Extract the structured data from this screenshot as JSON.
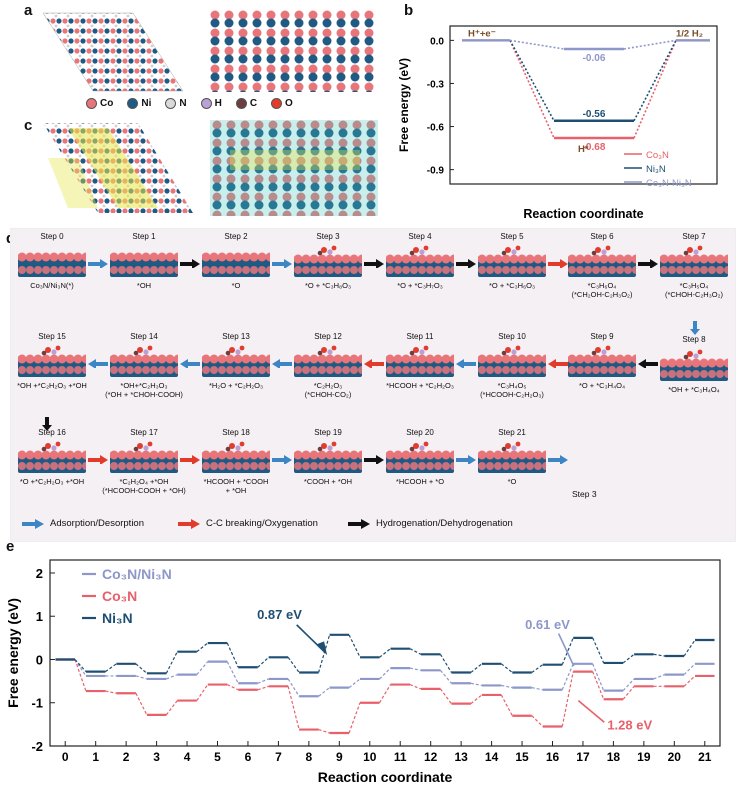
{
  "panels": {
    "a": "a",
    "b": "b",
    "c": "c",
    "d": "d",
    "e": "e"
  },
  "atom_legend": [
    {
      "label": "Co",
      "color": "#e8757a"
    },
    {
      "label": "Ni",
      "color": "#1f5a85"
    },
    {
      "label": "N",
      "color": "#d9d9d9"
    },
    {
      "label": "H",
      "color": "#b9a0d6"
    },
    {
      "label": "C",
      "color": "#6b3f3f"
    },
    {
      "label": "O",
      "color": "#e23c2c"
    }
  ],
  "colors": {
    "co3n": "#e8606a",
    "ni3n": "#1e4f73",
    "mix": "#8e97c9",
    "blue_arrow": "#3d86c6",
    "red_arrow": "#e23b2c",
    "black_arrow": "#111111"
  },
  "chart_data": [
    {
      "panel": "b",
      "type": "line",
      "ylabel": "Free energy (eV)",
      "xlabel": "Reaction coordinate",
      "ylim": [
        -1.0,
        0.1
      ],
      "yticks": [
        "0.0",
        "-0.3",
        "-0.6",
        "-0.9"
      ],
      "ytick_values": [
        0.0,
        -0.3,
        -0.6,
        -0.9
      ],
      "state_labels": {
        "initial": "H⁺+e⁻",
        "middle": "H*",
        "final": "1/2 H₂"
      },
      "series": [
        {
          "name": "Co₃N",
          "values": [
            0.0,
            -0.68,
            0.0
          ],
          "label": "-0.68"
        },
        {
          "name": "Ni₃N",
          "values": [
            0.0,
            -0.56,
            0.0
          ],
          "label": "-0.56"
        },
        {
          "name": "Co₃N-Ni₃N",
          "values": [
            0.0,
            -0.06,
            0.0
          ],
          "label": "-0.06"
        }
      ],
      "legend": [
        "Co₃N",
        "Ni₃N",
        "Co₃N-Ni₃N"
      ]
    },
    {
      "panel": "e",
      "type": "line",
      "ylabel": "Free energy (eV)",
      "xlabel": "Reaction coordinate",
      "ylim": [
        -2,
        2.3
      ],
      "yticks": [
        2,
        1,
        0,
        -1,
        -2
      ],
      "x": [
        0,
        1,
        2,
        3,
        4,
        5,
        6,
        7,
        8,
        9,
        10,
        11,
        12,
        13,
        14,
        15,
        16,
        17,
        18,
        19,
        20,
        21
      ],
      "series": [
        {
          "name": "Co₃N/Ni₃N",
          "values": [
            0,
            -0.38,
            -0.38,
            -0.45,
            -0.35,
            -0.05,
            -0.55,
            -0.45,
            -0.85,
            -0.65,
            -0.45,
            -0.2,
            -0.25,
            -0.55,
            -0.6,
            -0.65,
            -0.7,
            -0.1,
            -0.72,
            -0.45,
            -0.35,
            -0.1
          ]
        },
        {
          "name": "Co₃N",
          "values": [
            0,
            -0.73,
            -0.78,
            -1.28,
            -0.95,
            -0.58,
            -0.7,
            -0.62,
            -1.62,
            -1.7,
            -1.0,
            -0.58,
            -0.68,
            -1.02,
            -0.82,
            -1.3,
            -1.55,
            -0.28,
            -0.92,
            -0.62,
            -0.62,
            -0.38
          ]
        },
        {
          "name": "Ni₃N",
          "values": [
            0,
            -0.28,
            -0.1,
            -0.32,
            0.18,
            0.38,
            -0.18,
            0.05,
            -0.3,
            0.57,
            0.05,
            0.25,
            0.12,
            -0.3,
            -0.1,
            -0.3,
            -0.12,
            0.5,
            -0.08,
            0.12,
            0.08,
            0.45
          ]
        }
      ],
      "annotations": [
        {
          "text": "0.87 eV",
          "series": "Ni₃N"
        },
        {
          "text": "0.61 eV",
          "series": "Co₃N/Ni₃N"
        },
        {
          "text": "1.28 eV",
          "series": "Co₃N"
        }
      ]
    }
  ],
  "steps": [
    {
      "title": "Step 0",
      "caption": "Co₃N/Ni₃N(*)"
    },
    {
      "title": "Step 1",
      "caption": "*OH"
    },
    {
      "title": "Step 2",
      "caption": "*O"
    },
    {
      "title": "Step 3",
      "caption": "*O + *C₃H₈O₃"
    },
    {
      "title": "Step 4",
      "caption": "*O + *C₃H₇O₃"
    },
    {
      "title": "Step 5",
      "caption": "*O + *C₃H₆O₃"
    },
    {
      "title": "Step 6",
      "caption": "*C₃H₆O₄\n(*CH₂OH-C₂H₃O₂)"
    },
    {
      "title": "Step 7",
      "caption": "*C₃H₅O₄\n(*CHOH-C₂H₃O₂)"
    },
    {
      "title": "Step 8",
      "caption": "*OH + *C₃H₄O₄"
    },
    {
      "title": "Step 9",
      "caption": "*O + *C₃H₄O₄"
    },
    {
      "title": "Step 10",
      "caption": "*C₃H₄O₅\n(*HCOOH-C₂H₂O₃)"
    },
    {
      "title": "Step 11",
      "caption": "*HCOOH + *C₂H₂O₃"
    },
    {
      "title": "Step 12",
      "caption": "*C₂H₂O₃\n(*CHOH-CO₂)"
    },
    {
      "title": "Step 13",
      "caption": "*H₂O + *C₂H₂O₃"
    },
    {
      "title": "Step 14",
      "caption": "*OH+*C₂H₃O₃\n(*OH + *CHOH-COOH)"
    },
    {
      "title": "Step 15",
      "caption": "*OH +*C₂H₂O₃ +*OH"
    },
    {
      "title": "Step 16",
      "caption": "*O +*C₂H₂O₃ +*OH"
    },
    {
      "title": "Step 17",
      "caption": "*C₂H₂O₄ +*OH\n(*HCOOH-COOH + *OH)"
    },
    {
      "title": "Step 18",
      "caption": "*HCOOH + *COOH\n+ *OH"
    },
    {
      "title": "Step 19",
      "caption": "*COOH + *OH"
    },
    {
      "title": "Step 20",
      "caption": "*HCOOH + *O"
    },
    {
      "title": "Step 21",
      "caption": "*O"
    }
  ],
  "step_end_label": "Step 3",
  "arrow_legend": [
    {
      "label": "Adsorption/Desorption",
      "color": "#3d86c6"
    },
    {
      "label": "C-C breaking/Oxygenation",
      "color": "#e23b2c"
    },
    {
      "label": "Hydrogenation/Dehydrogenation",
      "color": "#111111"
    }
  ]
}
